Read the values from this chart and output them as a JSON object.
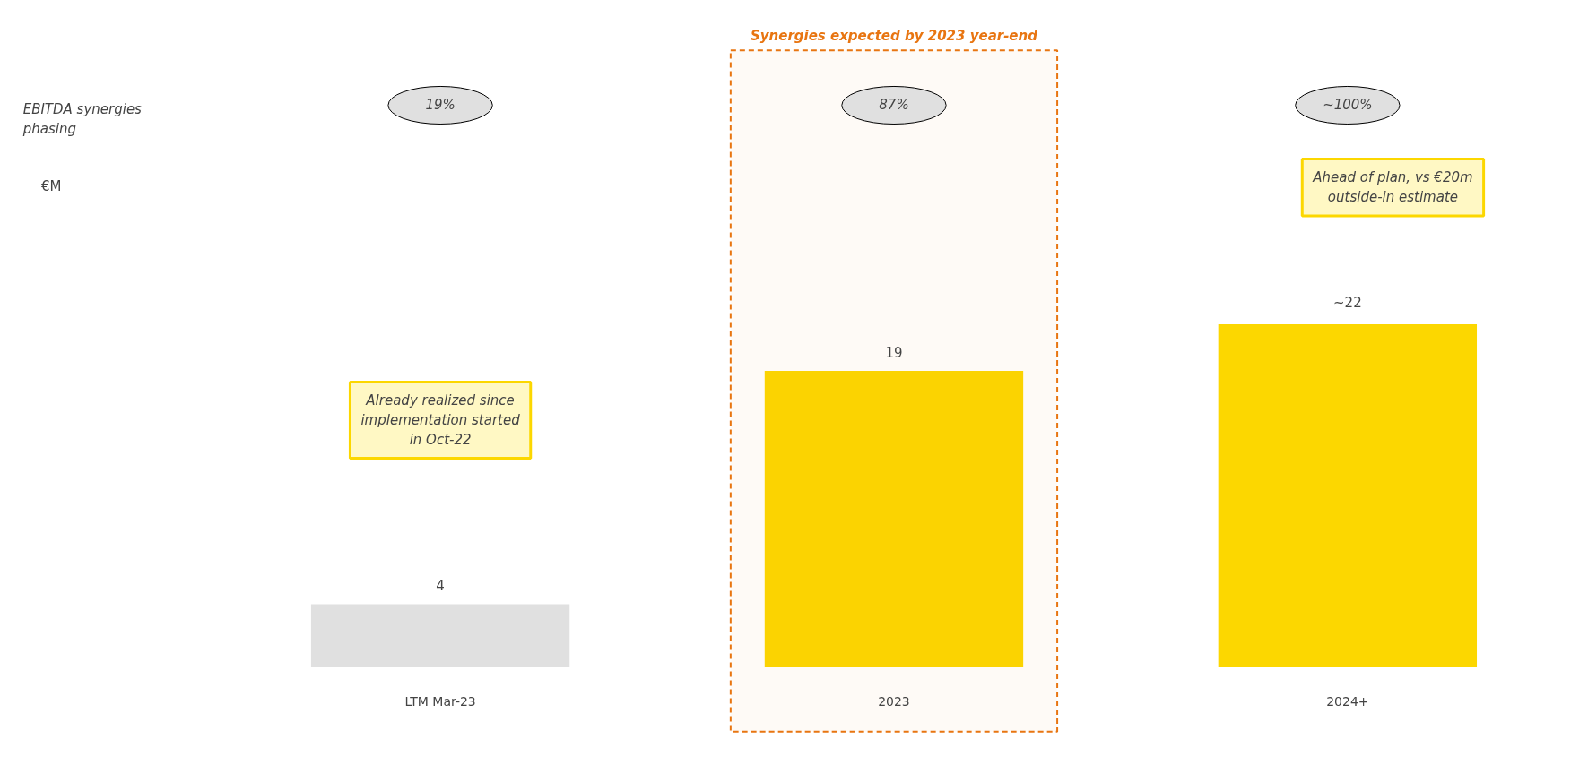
{
  "chart_data": {
    "type": "bar",
    "categories": [
      "LTM Mar-23",
      "2023",
      "2024+"
    ],
    "values": [
      4,
      19,
      22
    ],
    "colors": [
      "#e0e0e0",
      "#fcd700",
      "#fcd700"
    ],
    "value_labels": [
      "4",
      "19",
      "~22"
    ],
    "bands": [
      {
        "axis": "x",
        "from": "2023",
        "to": "2023",
        "label": "Synergies expected by 2023 year-end",
        "color": "#e87511"
      }
    ],
    "annotations": [
      "EBITDA synergies phasing",
      "19%",
      "87%",
      "~100%",
      "Already realized since implementation started in Oct-22",
      "Ahead of plan, vs €20m outside-in estimate",
      "€M"
    ],
    "grid": false
  }
}
